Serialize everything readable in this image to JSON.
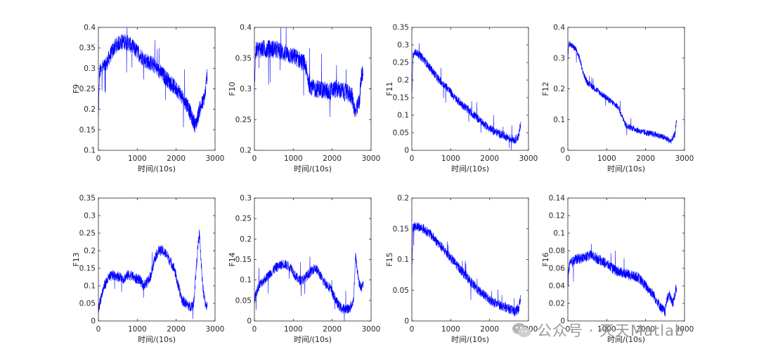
{
  "watermark": {
    "text": "公众号 · 天天Matlab",
    "icon": "wechat-logo-icon"
  },
  "colors": {
    "series": "#0000ff",
    "axes": "#262626",
    "text": "#262626"
  },
  "chart_data": [
    {
      "type": "line",
      "ylabel": "F9",
      "xlabel": "时间/(10s)",
      "xlim": [
        0,
        3000
      ],
      "ylim": [
        0.1,
        0.4
      ],
      "xticks": [
        "0",
        "1000",
        "2000",
        "3000"
      ],
      "yticks": [
        "0.1",
        "0.15",
        "0.2",
        "0.25",
        "0.3",
        "0.35",
        "0.4"
      ],
      "series": [
        {
          "x": [
            0,
            30,
            100,
            200,
            300,
            400,
            500,
            600,
            700,
            800,
            900,
            1000,
            1200,
            1400,
            1600,
            1800,
            2000,
            2100,
            2200,
            2300,
            2400,
            2500,
            2600,
            2700,
            2750,
            2800
          ],
          "y": [
            0.18,
            0.29,
            0.3,
            0.31,
            0.33,
            0.35,
            0.36,
            0.365,
            0.365,
            0.36,
            0.35,
            0.34,
            0.32,
            0.31,
            0.29,
            0.27,
            0.25,
            0.24,
            0.22,
            0.21,
            0.18,
            0.16,
            0.2,
            0.22,
            0.24,
            0.29
          ],
          "noise": 0.02
        }
      ]
    },
    {
      "type": "line",
      "ylabel": "F10",
      "xlabel": "时间/(10s)",
      "xlim": [
        0,
        3000
      ],
      "ylim": [
        0.2,
        0.4
      ],
      "xticks": [
        "0",
        "1000",
        "2000",
        "3000"
      ],
      "yticks": [
        "0.2",
        "0.25",
        "0.3",
        "0.35",
        "0.4"
      ],
      "series": [
        {
          "x": [
            0,
            30,
            100,
            300,
            500,
            700,
            900,
            1100,
            1300,
            1400,
            1500,
            1700,
            1900,
            2100,
            2300,
            2500,
            2600,
            2700,
            2750,
            2800
          ],
          "y": [
            0.3,
            0.36,
            0.365,
            0.365,
            0.365,
            0.36,
            0.355,
            0.35,
            0.34,
            0.31,
            0.3,
            0.3,
            0.295,
            0.3,
            0.295,
            0.29,
            0.26,
            0.28,
            0.32,
            0.33
          ],
          "noise": 0.015
        }
      ]
    },
    {
      "type": "line",
      "ylabel": "F11",
      "xlabel": "时间/(10s)",
      "xlim": [
        0,
        3000
      ],
      "ylim": [
        0,
        0.35
      ],
      "xticks": [
        "0",
        "1000",
        "2000",
        "3000"
      ],
      "yticks": [
        "0",
        "0.05",
        "0.1",
        "0.15",
        "0.2",
        "0.25",
        "0.3",
        "0.35"
      ],
      "series": [
        {
          "x": [
            0,
            30,
            100,
            300,
            500,
            700,
            900,
            1100,
            1300,
            1500,
            1700,
            1900,
            2100,
            2300,
            2500,
            2650,
            2750,
            2800
          ],
          "y": [
            0.15,
            0.27,
            0.28,
            0.26,
            0.23,
            0.2,
            0.18,
            0.15,
            0.13,
            0.11,
            0.09,
            0.07,
            0.055,
            0.045,
            0.035,
            0.03,
            0.04,
            0.08
          ],
          "noise": 0.012
        }
      ]
    },
    {
      "type": "line",
      "ylabel": "F12",
      "xlabel": "时间/(10s)",
      "xlim": [
        0,
        3000
      ],
      "ylim": [
        0,
        0.4
      ],
      "xticks": [
        "0",
        "1000",
        "2000",
        "3000"
      ],
      "yticks": [
        "0",
        "0.1",
        "0.2",
        "0.3",
        "0.4"
      ],
      "series": [
        {
          "x": [
            0,
            30,
            100,
            200,
            300,
            400,
            500,
            700,
            900,
            1100,
            1300,
            1400,
            1500,
            1700,
            1900,
            2100,
            2300,
            2500,
            2650,
            2750,
            2800
          ],
          "y": [
            0.3,
            0.35,
            0.34,
            0.33,
            0.3,
            0.25,
            0.22,
            0.2,
            0.18,
            0.16,
            0.14,
            0.11,
            0.08,
            0.07,
            0.06,
            0.055,
            0.05,
            0.04,
            0.03,
            0.05,
            0.1
          ],
          "noise": 0.01
        }
      ]
    },
    {
      "type": "line",
      "ylabel": "F13",
      "xlabel": "时间/(10s)",
      "xlim": [
        0,
        3000
      ],
      "ylim": [
        0,
        0.35
      ],
      "xticks": [
        "0",
        "1000",
        "2000",
        "3000"
      ],
      "yticks": [
        "0",
        "0.05",
        "0.1",
        "0.15",
        "0.2",
        "0.25",
        "0.3",
        "0.35"
      ],
      "series": [
        {
          "x": [
            0,
            50,
            150,
            250,
            350,
            450,
            550,
            650,
            750,
            850,
            950,
            1050,
            1150,
            1250,
            1350,
            1450,
            1550,
            1650,
            1750,
            1850,
            1950,
            2050,
            2150,
            2250,
            2350,
            2450,
            2550,
            2600,
            2650,
            2700,
            2750,
            2800
          ],
          "y": [
            0.03,
            0.06,
            0.1,
            0.12,
            0.13,
            0.13,
            0.125,
            0.12,
            0.13,
            0.13,
            0.12,
            0.12,
            0.1,
            0.11,
            0.13,
            0.18,
            0.2,
            0.2,
            0.19,
            0.17,
            0.15,
            0.1,
            0.06,
            0.05,
            0.04,
            0.05,
            0.2,
            0.25,
            0.15,
            0.08,
            0.05,
            0.04
          ],
          "noise": 0.015
        }
      ]
    },
    {
      "type": "line",
      "ylabel": "F14",
      "xlabel": "时间/(10s)",
      "xlim": [
        0,
        3000
      ],
      "ylim": [
        0,
        0.3
      ],
      "xticks": [
        "0",
        "1000",
        "2000",
        "3000"
      ],
      "yticks": [
        "0",
        "0.05",
        "0.1",
        "0.15",
        "0.2",
        "0.25",
        "0.3"
      ],
      "series": [
        {
          "x": [
            0,
            50,
            150,
            250,
            350,
            450,
            550,
            650,
            750,
            850,
            950,
            1050,
            1150,
            1250,
            1350,
            1450,
            1550,
            1650,
            1750,
            1850,
            1950,
            2050,
            2150,
            2250,
            2350,
            2450,
            2550,
            2600,
            2650,
            2700,
            2750,
            2800
          ],
          "y": [
            0.05,
            0.07,
            0.09,
            0.1,
            0.11,
            0.12,
            0.13,
            0.135,
            0.14,
            0.135,
            0.13,
            0.11,
            0.1,
            0.1,
            0.11,
            0.12,
            0.13,
            0.12,
            0.1,
            0.09,
            0.08,
            0.06,
            0.04,
            0.03,
            0.03,
            0.03,
            0.05,
            0.16,
            0.12,
            0.09,
            0.08,
            0.09
          ],
          "noise": 0.012
        }
      ]
    },
    {
      "type": "line",
      "ylabel": "F15",
      "xlabel": "时间/(10s)",
      "xlim": [
        0,
        3000
      ],
      "ylim": [
        0,
        0.2
      ],
      "xticks": [
        "0",
        "1000",
        "2000",
        "3000"
      ],
      "yticks": [
        "0",
        "0.05",
        "0.1",
        "0.15",
        "0.2"
      ],
      "series": [
        {
          "x": [
            0,
            30,
            100,
            300,
            500,
            700,
            900,
            1100,
            1300,
            1500,
            1700,
            1900,
            2100,
            2300,
            2500,
            2650,
            2750,
            2800
          ],
          "y": [
            0.08,
            0.15,
            0.155,
            0.15,
            0.14,
            0.125,
            0.11,
            0.095,
            0.08,
            0.065,
            0.05,
            0.04,
            0.03,
            0.025,
            0.02,
            0.015,
            0.02,
            0.04
          ],
          "noise": 0.008
        }
      ]
    },
    {
      "type": "line",
      "ylabel": "F16",
      "xlabel": "时间/(10s)",
      "xlim": [
        0,
        3000
      ],
      "ylim": [
        0,
        0.14
      ],
      "xticks": [
        "0",
        "1000",
        "2000",
        "3000"
      ],
      "yticks": [
        "0",
        "0.02",
        "0.04",
        "0.06",
        "0.08",
        "0.1",
        "0.12",
        "0.14"
      ],
      "series": [
        {
          "x": [
            0,
            50,
            200,
            400,
            600,
            800,
            1000,
            1200,
            1400,
            1600,
            1800,
            2000,
            2200,
            2400,
            2500,
            2550,
            2600,
            2700,
            2800
          ],
          "y": [
            0.05,
            0.065,
            0.07,
            0.072,
            0.075,
            0.07,
            0.065,
            0.058,
            0.055,
            0.052,
            0.05,
            0.04,
            0.03,
            0.015,
            0.01,
            0.025,
            0.03,
            0.02,
            0.04
          ],
          "noise": 0.006
        }
      ]
    }
  ]
}
